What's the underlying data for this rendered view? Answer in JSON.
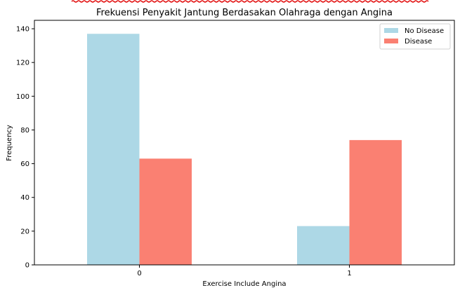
{
  "chart_data": {
    "type": "bar",
    "title": "Frekuensi Penyakit Jantung Berdasakan Olahraga dengan Angina",
    "xlabel": "Exercise Include Angina",
    "ylabel": "Frequency",
    "categories": [
      "0",
      "1"
    ],
    "series": [
      {
        "name": "No Disease",
        "values": [
          137,
          23
        ]
      },
      {
        "name": "Disease",
        "values": [
          63,
          74
        ]
      }
    ],
    "ylim": [
      0,
      145
    ],
    "yticks": [
      0,
      20,
      40,
      60,
      80,
      100,
      120,
      140
    ],
    "grid": false,
    "legend": "top-right"
  },
  "colors": {
    "No Disease": "#add8e6",
    "Disease": "#fa8072",
    "axis": "#000000"
  }
}
